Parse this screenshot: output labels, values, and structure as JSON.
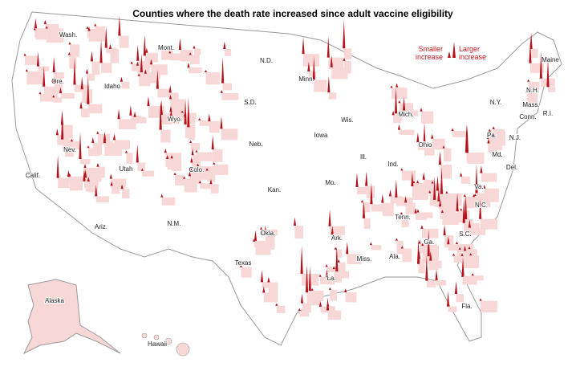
{
  "title": "Counties where the death rate increased since adult vaccine eligibility",
  "legend": {
    "smaller": "Smaller increase",
    "larger": "Larger increase"
  },
  "states": [
    "Wash.",
    "Mont.",
    "N.D.",
    "Minn.",
    "Maine",
    "Ore.",
    "Idaho",
    "S.D.",
    "Wis.",
    "Mich.",
    "N.Y.",
    "Mass.",
    "N.H.",
    "Wyo.",
    "Iowa",
    "Conn.",
    "R.I.",
    "Nev.",
    "Neb.",
    "Ill.",
    "Ohio",
    "Pa.",
    "N.J.",
    "Calif.",
    "Utah",
    "Colo.",
    "Ind.",
    "Md.",
    "Del.",
    "Kan.",
    "Mo.",
    "Va.",
    "Tenn.",
    "N.C.",
    "Ariz.",
    "N.M.",
    "Okla.",
    "Ark.",
    "S.C.",
    "Ga.",
    "Texas",
    "Miss.",
    "Ala.",
    "La.",
    "Fla.",
    "Alaska",
    "Hawaii"
  ]
}
